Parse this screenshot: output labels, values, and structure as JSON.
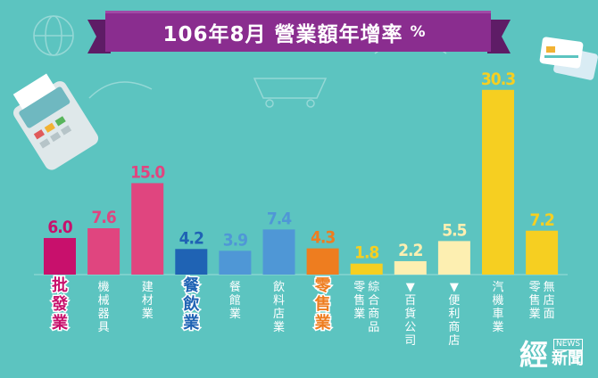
{
  "title": "106年8月 營業額年增率",
  "title_unit": "%",
  "brand": {
    "logo_big": "經",
    "logo_news": "NEWS",
    "logo_small": "新聞"
  },
  "chart_data": {
    "type": "bar",
    "title": "106年8月 營業額年增率",
    "unit": "%",
    "categories": [
      "批發業",
      "機械器具",
      "建材業",
      "餐飲業",
      "餐館業",
      "飲料店業",
      "零售業",
      "零售業綜合商品",
      "▼百貨公司",
      "▼便利商店",
      "汽機車業",
      "零售業無店面"
    ],
    "values": [
      6.0,
      7.6,
      15.0,
      4.2,
      3.9,
      7.4,
      4.3,
      1.8,
      2.2,
      5.5,
      30.3,
      7.2
    ],
    "value_labels": [
      "6.0",
      "7.6",
      "15.0",
      "4.2",
      "3.9",
      "7.4",
      "4.3",
      "1.8",
      "2.2",
      "5.5",
      "30.3",
      "7.2"
    ],
    "label_columns": [
      [
        "批發業"
      ],
      [
        "機械器具"
      ],
      [
        "建材業"
      ],
      [
        "餐飲業"
      ],
      [
        "餐館業"
      ],
      [
        "飲料店業"
      ],
      [
        "零售業"
      ],
      [
        "零售業",
        "綜合商品"
      ],
      [
        "▼百貨公司"
      ],
      [
        "▼便利商店"
      ],
      [
        "汽機車業"
      ],
      [
        "零售業",
        "無店面"
      ]
    ],
    "highlight": [
      true,
      false,
      false,
      true,
      false,
      false,
      true,
      false,
      false,
      false,
      false,
      false
    ],
    "colors": {
      "bars": [
        "#c8106c",
        "#e0457f",
        "#e0457f",
        "#1f63b4",
        "#4f97d6",
        "#4f97d6",
        "#ee7d1f",
        "#f6cf21",
        "#fdefb1",
        "#fdefb1",
        "#f6cf21",
        "#f6cf21"
      ],
      "value_text": [
        "#c8106c",
        "#e0457f",
        "#e0457f",
        "#1f63b4",
        "#4f97d6",
        "#4f97d6",
        "#ee7d1f",
        "#f6cf21",
        "#fdefb1",
        "#fdefb1",
        "#f6cf21",
        "#f6cf21"
      ],
      "label_text": [
        "#c8106c",
        "#ffffff",
        "#ffffff",
        "#1f63b4",
        "#ffffff",
        "#ffffff",
        "#ee7d1f",
        "#ffffff",
        "#ffffff",
        "#ffffff",
        "#ffffff",
        "#ffffff"
      ],
      "background": "#5cc4c0",
      "banner": "#8a2d8f"
    },
    "ylim": [
      0,
      31
    ],
    "grid": false,
    "legend": "none"
  }
}
